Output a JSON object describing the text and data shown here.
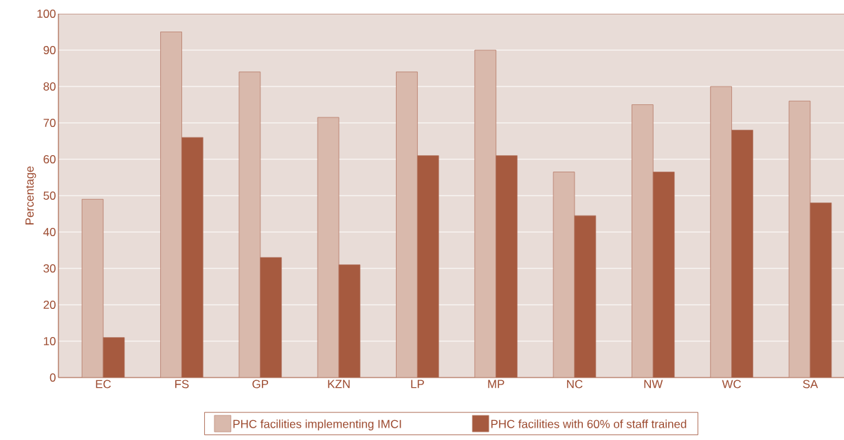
{
  "chart_data": {
    "type": "bar",
    "ylabel": "Percentage",
    "categories": [
      "EC",
      "FS",
      "GP",
      "KZN",
      "LP",
      "MP",
      "NC",
      "NW",
      "WC",
      "SA"
    ],
    "series": [
      {
        "name": "PHC facilities implementing IMCI",
        "color": "#d9b9ac",
        "values": [
          49,
          95,
          84,
          71.5,
          84,
          90,
          56.5,
          75,
          80,
          76
        ]
      },
      {
        "name": "PHC facilities with 60% of staff trained",
        "color": "#a65a3f",
        "values": [
          11,
          66,
          33,
          31,
          61,
          61,
          44.5,
          56.5,
          68,
          48
        ]
      }
    ],
    "ylim": [
      0,
      100
    ],
    "yticks": [
      0,
      10,
      20,
      30,
      40,
      50,
      60,
      70,
      80,
      90,
      100
    ],
    "grid": "y",
    "legend": "bottom"
  }
}
